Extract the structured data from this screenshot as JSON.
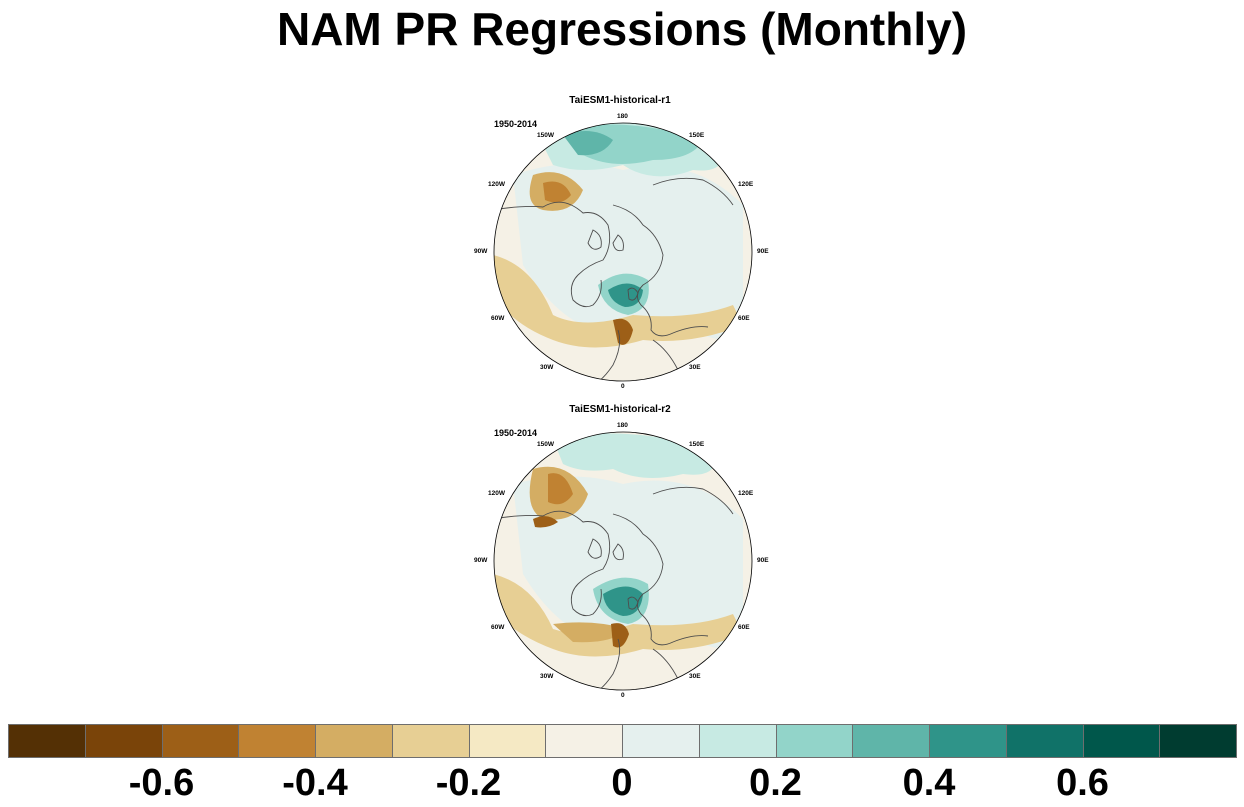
{
  "title": "NAM PR Regressions (Monthly)",
  "panels": [
    {
      "title": "TaiESM1-historical-r1",
      "period": "1950-2014",
      "lon_labels": [
        "180",
        "150E",
        "120E",
        "90E",
        "60E",
        "30E",
        "0",
        "30W",
        "60W",
        "90W",
        "120W",
        "150W"
      ]
    },
    {
      "title": "TaiESM1-historical-r2",
      "period": "1950-2014",
      "lon_labels": [
        "180",
        "150E",
        "120E",
        "90E",
        "60E",
        "30E",
        "0",
        "30W",
        "60W",
        "90W",
        "120W",
        "150W"
      ]
    }
  ],
  "colorbar": {
    "colors": [
      "#543005",
      "#7a4409",
      "#9d5f17",
      "#c08232",
      "#d4ad63",
      "#e7cf94",
      "#f5e9c4",
      "#f5f1e6",
      "#e5f0ee",
      "#c7eae3",
      "#92d4c9",
      "#5fb5a9",
      "#2f9489",
      "#107268",
      "#00574b",
      "#003c30"
    ],
    "labels": [
      "-0.6",
      "-0.4",
      "-0.2",
      "0",
      "0.2",
      "0.4",
      "0.6"
    ]
  },
  "colors": {
    "brown_strong": "#9d5f17",
    "brown_mid": "#c08232",
    "tan": "#d4ad63",
    "tan_light": "#e7cf94",
    "cream": "#f5e9c4",
    "neutral": "#f5f1e6",
    "teal_pale": "#e5f0ee",
    "teal_light": "#c7eae3",
    "teal_mid": "#92d4c9",
    "teal": "#5fb5a9",
    "teal_dark": "#2f9489",
    "teal_deep": "#107268",
    "coast": "#4d4d4d"
  }
}
